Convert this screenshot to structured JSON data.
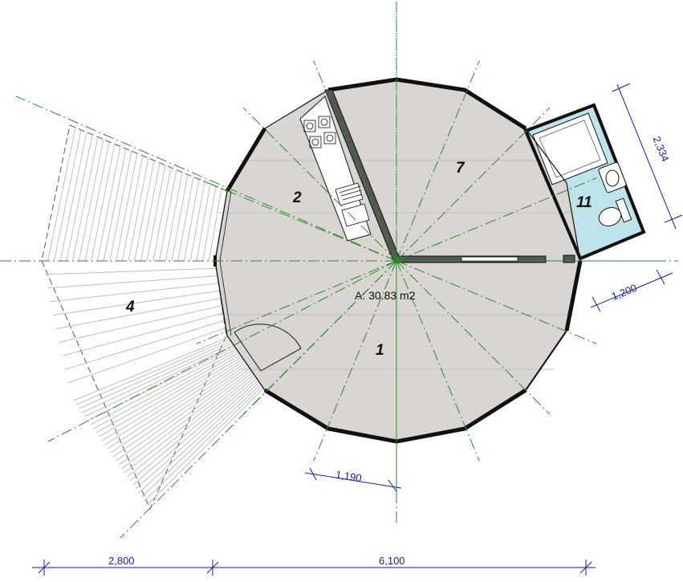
{
  "rooms": [
    {
      "id": "1",
      "label": "1"
    },
    {
      "id": "2",
      "label": "2"
    },
    {
      "id": "4",
      "label": "4"
    },
    {
      "id": "7",
      "label": "7"
    },
    {
      "id": "11",
      "label": "11"
    }
  ],
  "area_label": "A: 30.83 m2",
  "dimensions": {
    "deck_width": "2,800",
    "yurt_diameter": "6,100",
    "wall_segment": "1,190",
    "bath_depth": "1,200",
    "bath_width": "2,334"
  },
  "colors": {
    "floor": "#d9d5d3",
    "bathroom": "#bfe3ea",
    "wall": "#111111",
    "axis": "#2a8a2a",
    "dimension": "#1a1aa8"
  }
}
